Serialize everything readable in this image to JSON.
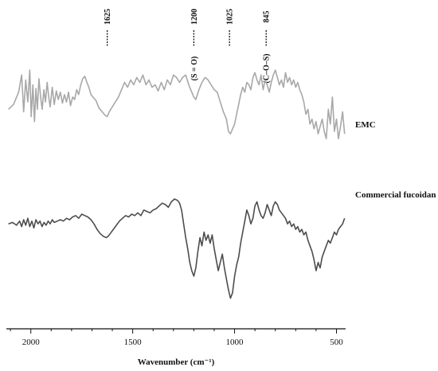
{
  "chart_data": {
    "type": "line",
    "title": "",
    "xlabel": "Wavenumber (cm⁻¹)",
    "ylabel": "",
    "xlim": [
      2120,
      455
    ],
    "x_reversed": true,
    "y_axis_shown": false,
    "grid": false,
    "legend": "series labels at right end of each trace",
    "x_ticks": [
      {
        "value": 2000,
        "label": "2000"
      },
      {
        "value": 1500,
        "label": "1500"
      },
      {
        "value": 1000,
        "label": "1000"
      },
      {
        "value": 500,
        "label": "500"
      }
    ],
    "markers": [
      {
        "x": 1625,
        "label": "1625",
        "assignment": ""
      },
      {
        "x": 1200,
        "label": "1200",
        "assignment": "(S = O)"
      },
      {
        "x": 1025,
        "label": "1025",
        "assignment": ""
      },
      {
        "x": 845,
        "label": "845",
        "assignment": "(C–O–S)"
      }
    ],
    "series": [
      {
        "name": "EMC",
        "color": "#a8a8a8",
        "x": [
          2110,
          2085,
          2060,
          2045,
          2035,
          2025,
          2015,
          2005,
          1998,
          1990,
          1982,
          1975,
          1968,
          1960,
          1952,
          1944,
          1936,
          1928,
          1920,
          1912,
          1905,
          1895,
          1885,
          1875,
          1865,
          1855,
          1845,
          1835,
          1825,
          1815,
          1805,
          1795,
          1785,
          1775,
          1765,
          1755,
          1745,
          1735,
          1725,
          1715,
          1705,
          1695,
          1680,
          1665,
          1650,
          1635,
          1625,
          1615,
          1600,
          1585,
          1570,
          1555,
          1540,
          1525,
          1510,
          1495,
          1480,
          1465,
          1450,
          1435,
          1420,
          1405,
          1390,
          1375,
          1360,
          1345,
          1330,
          1315,
          1300,
          1285,
          1270,
          1255,
          1240,
          1225,
          1210,
          1200,
          1190,
          1175,
          1160,
          1145,
          1130,
          1115,
          1100,
          1085,
          1070,
          1055,
          1040,
          1030,
          1020,
          1010,
          1000,
          990,
          980,
          970,
          960,
          950,
          940,
          930,
          920,
          910,
          900,
          890,
          880,
          870,
          860,
          850,
          840,
          830,
          820,
          810,
          800,
          790,
          780,
          770,
          760,
          750,
          740,
          730,
          720,
          710,
          700,
          690,
          680,
          670,
          660,
          650,
          640,
          630,
          620,
          610,
          600,
          590,
          580,
          570,
          560,
          550,
          540,
          530,
          520,
          510,
          500,
          490,
          480,
          470,
          460
        ],
        "y": [
          30,
          34,
          44,
          58,
          28,
          54,
          36,
          62,
          24,
          50,
          20,
          47,
          30,
          55,
          40,
          30,
          46,
          36,
          52,
          40,
          32,
          48,
          34,
          45,
          38,
          44,
          35,
          42,
          36,
          44,
          33,
          40,
          38,
          46,
          42,
          50,
          55,
          57,
          52,
          48,
          42,
          40,
          37,
          31,
          28,
          25,
          24,
          28,
          32,
          36,
          40,
          46,
          52,
          48,
          54,
          50,
          56,
          52,
          58,
          50,
          54,
          48,
          50,
          45,
          52,
          46,
          54,
          50,
          58,
          56,
          52,
          56,
          58,
          50,
          44,
          40,
          38,
          46,
          52,
          56,
          54,
          50,
          46,
          44,
          36,
          28,
          22,
          12,
          10,
          14,
          18,
          26,
          34,
          42,
          48,
          44,
          52,
          50,
          46,
          56,
          60,
          54,
          50,
          58,
          46,
          54,
          50,
          44,
          52,
          58,
          62,
          56,
          50,
          54,
          48,
          60,
          52,
          56,
          50,
          54,
          48,
          52,
          46,
          42,
          36,
          26,
          30,
          18,
          22,
          14,
          20,
          10,
          16,
          22,
          12,
          6,
          30,
          18,
          40,
          12,
          22,
          6,
          16,
          28,
          10
        ],
        "label": "EMC"
      },
      {
        "name": "Commercial fucoidan",
        "color": "#4d4d4d",
        "x": [
          2110,
          2090,
          2070,
          2055,
          2045,
          2035,
          2025,
          2015,
          2005,
          1995,
          1985,
          1975,
          1965,
          1955,
          1945,
          1935,
          1925,
          1915,
          1905,
          1895,
          1885,
          1870,
          1855,
          1840,
          1825,
          1810,
          1795,
          1780,
          1765,
          1750,
          1735,
          1720,
          1705,
          1690,
          1675,
          1660,
          1645,
          1630,
          1620,
          1610,
          1595,
          1580,
          1565,
          1550,
          1535,
          1520,
          1505,
          1490,
          1475,
          1460,
          1445,
          1430,
          1415,
          1400,
          1385,
          1370,
          1355,
          1340,
          1325,
          1310,
          1295,
          1280,
          1270,
          1260,
          1250,
          1240,
          1230,
          1220,
          1210,
          1200,
          1190,
          1180,
          1170,
          1160,
          1150,
          1140,
          1130,
          1120,
          1110,
          1100,
          1090,
          1080,
          1070,
          1060,
          1050,
          1040,
          1030,
          1020,
          1010,
          1000,
          990,
          980,
          970,
          960,
          950,
          940,
          930,
          920,
          910,
          900,
          890,
          880,
          870,
          860,
          850,
          840,
          830,
          820,
          810,
          800,
          790,
          780,
          770,
          760,
          750,
          740,
          730,
          720,
          710,
          700,
          690,
          680,
          670,
          660,
          650,
          640,
          630,
          620,
          610,
          600,
          590,
          580,
          570,
          560,
          550,
          540,
          530,
          520,
          510,
          500,
          490,
          480,
          470,
          460
        ],
        "y": [
          20,
          21,
          19,
          22,
          18,
          23,
          19,
          24,
          18,
          22,
          17,
          23,
          20,
          22,
          18,
          21,
          19,
          22,
          20,
          23,
          21,
          22,
          23,
          22,
          24,
          23,
          25,
          26,
          24,
          27,
          26,
          25,
          23,
          20,
          16,
          13,
          11,
          10,
          11,
          13,
          16,
          19,
          22,
          24,
          26,
          25,
          27,
          26,
          28,
          26,
          30,
          29,
          28,
          30,
          31,
          33,
          35,
          34,
          32,
          36,
          38,
          37,
          35,
          30,
          20,
          10,
          2,
          -8,
          -14,
          -18,
          -12,
          0,
          10,
          4,
          14,
          8,
          12,
          6,
          12,
          2,
          -6,
          -14,
          -8,
          -2,
          -12,
          -20,
          -28,
          -34,
          -30,
          -18,
          -10,
          -4,
          6,
          14,
          22,
          30,
          26,
          20,
          24,
          33,
          36,
          30,
          26,
          24,
          28,
          34,
          30,
          26,
          33,
          36,
          34,
          30,
          28,
          26,
          24,
          20,
          22,
          18,
          20,
          16,
          18,
          14,
          16,
          12,
          14,
          8,
          4,
          0,
          -6,
          -14,
          -8,
          -12,
          -4,
          0,
          4,
          8,
          6,
          10,
          14,
          12,
          16,
          18,
          20,
          24
        ],
        "label": "Commercial fucoidan"
      }
    ]
  }
}
